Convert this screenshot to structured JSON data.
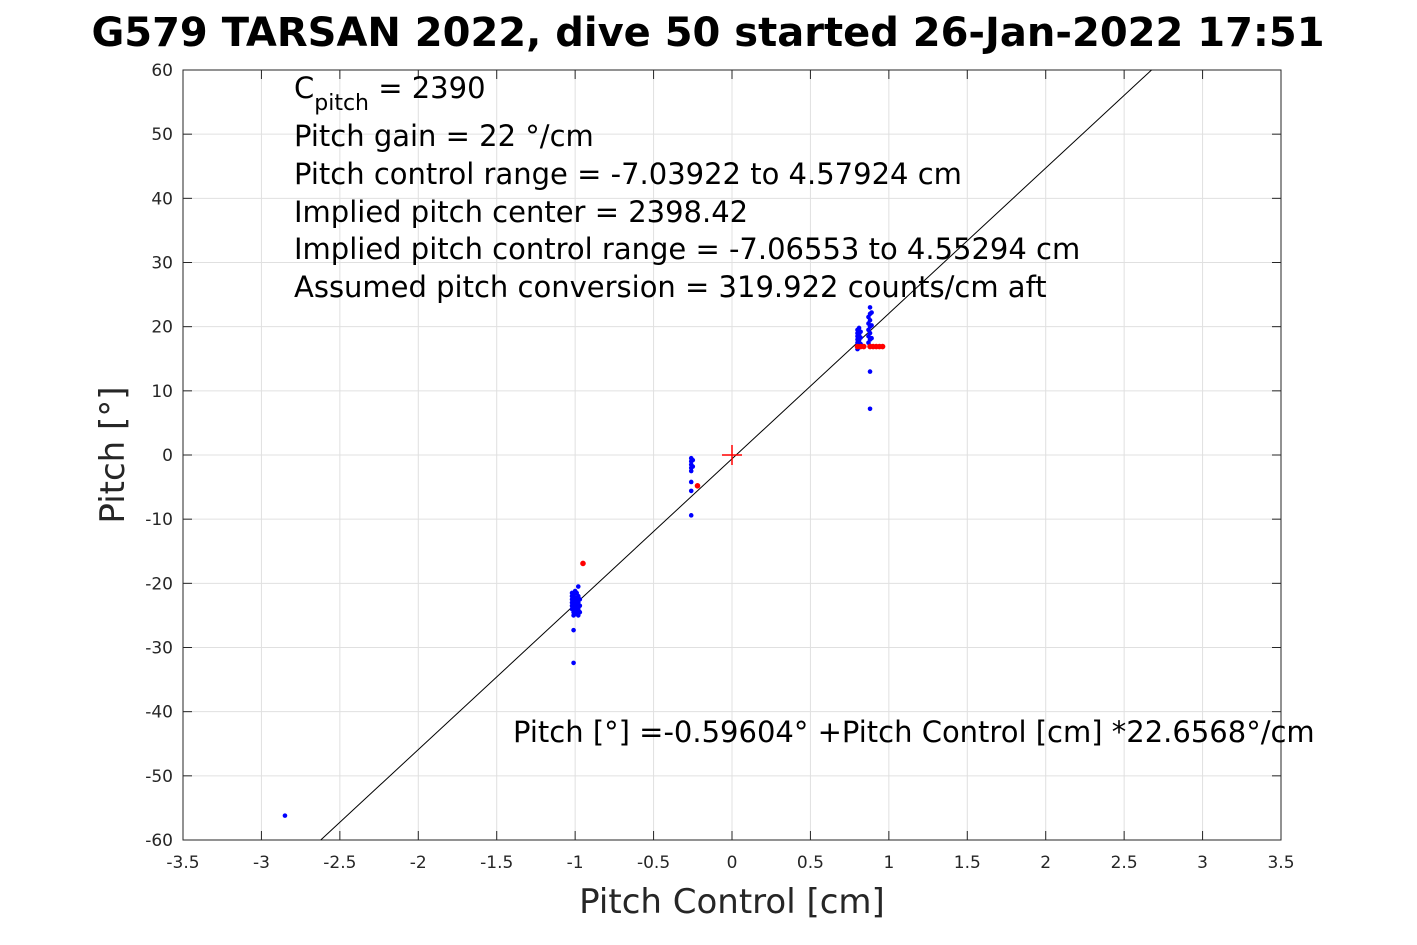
{
  "chart_data": {
    "type": "scatter",
    "title": "G579 TARSAN 2022, dive 50 started 26-Jan-2022 17:51",
    "xlabel": "Pitch Control [cm]",
    "ylabel": "Pitch [°]",
    "xlim": [
      -3.5,
      3.5
    ],
    "ylim": [
      -60,
      60
    ],
    "grid": true,
    "x_ticks": [
      -3.5,
      -3,
      -2.5,
      -2,
      -1.5,
      -1,
      -0.5,
      0,
      0.5,
      1,
      1.5,
      2,
      2.5,
      3,
      3.5
    ],
    "y_ticks": [
      -60,
      -50,
      -40,
      -30,
      -20,
      -10,
      0,
      10,
      20,
      30,
      40,
      50,
      60
    ],
    "annotations": {
      "c_pitch_prefix": "C",
      "c_pitch_sub": "pitch",
      "c_pitch_value": " = 2390",
      "pitch_gain": "Pitch gain = 22 °/cm",
      "control_range": "Pitch control range = -7.03922 to 4.57924 cm",
      "implied_center": "Implied pitch center = 2398.42",
      "implied_range": "Implied pitch control range = -7.06553 to 4.55294 cm",
      "assumed_conversion": "Assumed pitch conversion = 319.922 counts/cm aft",
      "fit_equation": "Pitch [°] =-0.59604° +Pitch Control [cm] *22.6568°/cm"
    },
    "fit_line": {
      "intercept": -0.59604,
      "slope": 22.6568,
      "color": "#000000"
    },
    "center_marker": {
      "x": 0,
      "y": 0,
      "color": "#ff0000"
    },
    "series": [
      {
        "color": "#0000ff",
        "points": [
          [
            -2.85,
            -56.2
          ],
          [
            -1.02,
            -21.5
          ],
          [
            -1.02,
            -22.0
          ],
          [
            -1.02,
            -22.5
          ],
          [
            -1.02,
            -23.0
          ],
          [
            -1.02,
            -23.5
          ],
          [
            -1.02,
            -24.0
          ],
          [
            -1.01,
            -21.8
          ],
          [
            -1.01,
            -22.8
          ],
          [
            -1.01,
            -23.8
          ],
          [
            -1.01,
            -24.5
          ],
          [
            -1.01,
            -25.0
          ],
          [
            -1.0,
            -21.2
          ],
          [
            -1.0,
            -22.2
          ],
          [
            -1.0,
            -23.2
          ],
          [
            -1.0,
            -24.2
          ],
          [
            -1.0,
            -24.8
          ],
          [
            -0.99,
            -21.5
          ],
          [
            -0.99,
            -22.6
          ],
          [
            -0.99,
            -23.6
          ],
          [
            -0.99,
            -24.6
          ],
          [
            -0.98,
            -20.5
          ],
          [
            -0.98,
            -22.0
          ],
          [
            -0.98,
            -23.0
          ],
          [
            -0.98,
            -24.0
          ],
          [
            -0.98,
            -25.0
          ],
          [
            -0.97,
            -22.5
          ],
          [
            -0.97,
            -23.5
          ],
          [
            -0.97,
            -24.5
          ],
          [
            -1.01,
            -27.3
          ],
          [
            -1.01,
            -32.4
          ],
          [
            -0.26,
            -0.5
          ],
          [
            -0.26,
            -1.0
          ],
          [
            -0.26,
            -1.5
          ],
          [
            -0.26,
            -2.0
          ],
          [
            -0.26,
            -2.5
          ],
          [
            -0.25,
            -0.8
          ],
          [
            -0.25,
            -1.8
          ],
          [
            -0.26,
            -4.2
          ],
          [
            -0.26,
            -5.6
          ],
          [
            -0.26,
            -9.4
          ],
          [
            0.8,
            16.5
          ],
          [
            0.8,
            17.0
          ],
          [
            0.8,
            17.5
          ],
          [
            0.8,
            18.0
          ],
          [
            0.8,
            18.5
          ],
          [
            0.8,
            19.0
          ],
          [
            0.8,
            19.5
          ],
          [
            0.81,
            16.8
          ],
          [
            0.81,
            17.8
          ],
          [
            0.81,
            18.8
          ],
          [
            0.81,
            19.8
          ],
          [
            0.82,
            17.3
          ],
          [
            0.82,
            18.3
          ],
          [
            0.82,
            19.2
          ],
          [
            0.87,
            17.5
          ],
          [
            0.87,
            18.5
          ],
          [
            0.87,
            19.5
          ],
          [
            0.87,
            20.5
          ],
          [
            0.87,
            21.5
          ],
          [
            0.88,
            17.0
          ],
          [
            0.88,
            18.0
          ],
          [
            0.88,
            19.0
          ],
          [
            0.88,
            20.0
          ],
          [
            0.88,
            21.0
          ],
          [
            0.88,
            22.0
          ],
          [
            0.88,
            23.0
          ],
          [
            0.89,
            18.2
          ],
          [
            0.89,
            20.2
          ],
          [
            0.89,
            22.2
          ],
          [
            0.88,
            13.0
          ],
          [
            0.88,
            7.2
          ]
        ]
      },
      {
        "color": "#ff0000",
        "points": [
          [
            -0.95,
            -16.9
          ],
          [
            -0.22,
            -4.8
          ],
          [
            0.8,
            16.9
          ],
          [
            0.82,
            16.9
          ],
          [
            0.84,
            16.9
          ],
          [
            0.88,
            16.9
          ],
          [
            0.9,
            16.9
          ],
          [
            0.92,
            16.9
          ],
          [
            0.94,
            16.9
          ],
          [
            0.96,
            16.9
          ]
        ]
      }
    ]
  }
}
